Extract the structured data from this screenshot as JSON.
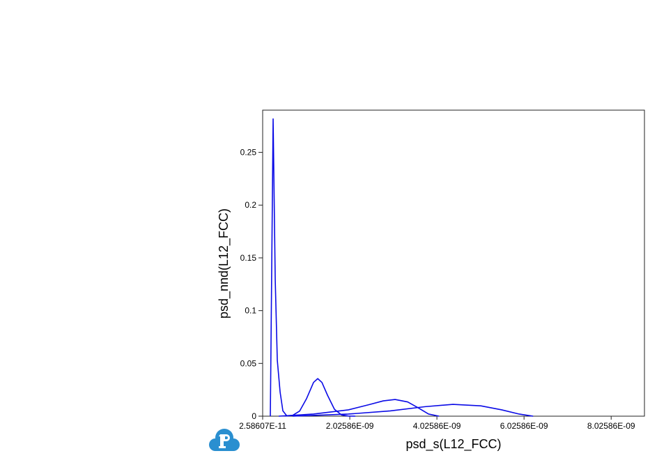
{
  "chart_data": {
    "type": "line",
    "xlabel": "psd_s(L12_FCC)",
    "ylabel": "psd_nnd(L12_FCC)",
    "xlim": [
      2.58607e-11,
      8.79e-09
    ],
    "ylim": [
      0,
      0.29
    ],
    "xticks": [
      {
        "value": 2.58607e-11,
        "label": "2.58607E-11"
      },
      {
        "value": 2.02586e-09,
        "label": "2.02586E-09"
      },
      {
        "value": 4.02586e-09,
        "label": "4.02586E-09"
      },
      {
        "value": 6.02586e-09,
        "label": "6.02586E-09"
      },
      {
        "value": 8.02586e-09,
        "label": "8.02586E-09"
      }
    ],
    "yticks": [
      0,
      0.05,
      0.1,
      0.15,
      0.2,
      0.25
    ],
    "series": [
      {
        "color": "#0a0ae6",
        "x": [
          2.02e-10,
          2.66e-10,
          3.14e-10,
          3.62e-10,
          4.26e-10,
          4.9e-10,
          5.86e-10
        ],
        "values": [
          0,
          0.2817,
          0.13,
          0.053,
          0.023,
          0.005,
          0
        ]
      },
      {
        "color": "#0a0ae6",
        "x": [
          5.54e-10,
          7.14e-10,
          8.74e-10,
          1.034e-09,
          1.194e-09,
          1.29e-09,
          1.386e-09,
          1.514e-09,
          1.674e-09,
          1.834e-09,
          1.994e-09,
          2.154e-09
        ],
        "values": [
          0.0001,
          0.0008,
          0.0048,
          0.0167,
          0.032,
          0.0356,
          0.032,
          0.0199,
          0.0065,
          0.0012,
          0.0001,
          0
        ]
      },
      {
        "color": "#0a0ae6",
        "x": [
          3.94e-10,
          1.194e-09,
          1.994e-09,
          2.474e-09,
          2.794e-09,
          3.066e-09,
          3.354e-09,
          3.594e-09,
          3.834e-09,
          4.074e-09
        ],
        "values": [
          0,
          0.002,
          0.006,
          0.011,
          0.0145,
          0.0158,
          0.0135,
          0.008,
          0.002,
          0
        ]
      },
      {
        "color": "#0a0ae6",
        "x": [
          7.14e-10,
          1.994e-09,
          2.954e-09,
          3.754e-09,
          4.394e-09,
          5.034e-09,
          5.514e-09,
          5.914e-09,
          6.234e-09
        ],
        "values": [
          0,
          0.002,
          0.005,
          0.009,
          0.0112,
          0.0098,
          0.006,
          0.002,
          0
        ]
      }
    ]
  }
}
